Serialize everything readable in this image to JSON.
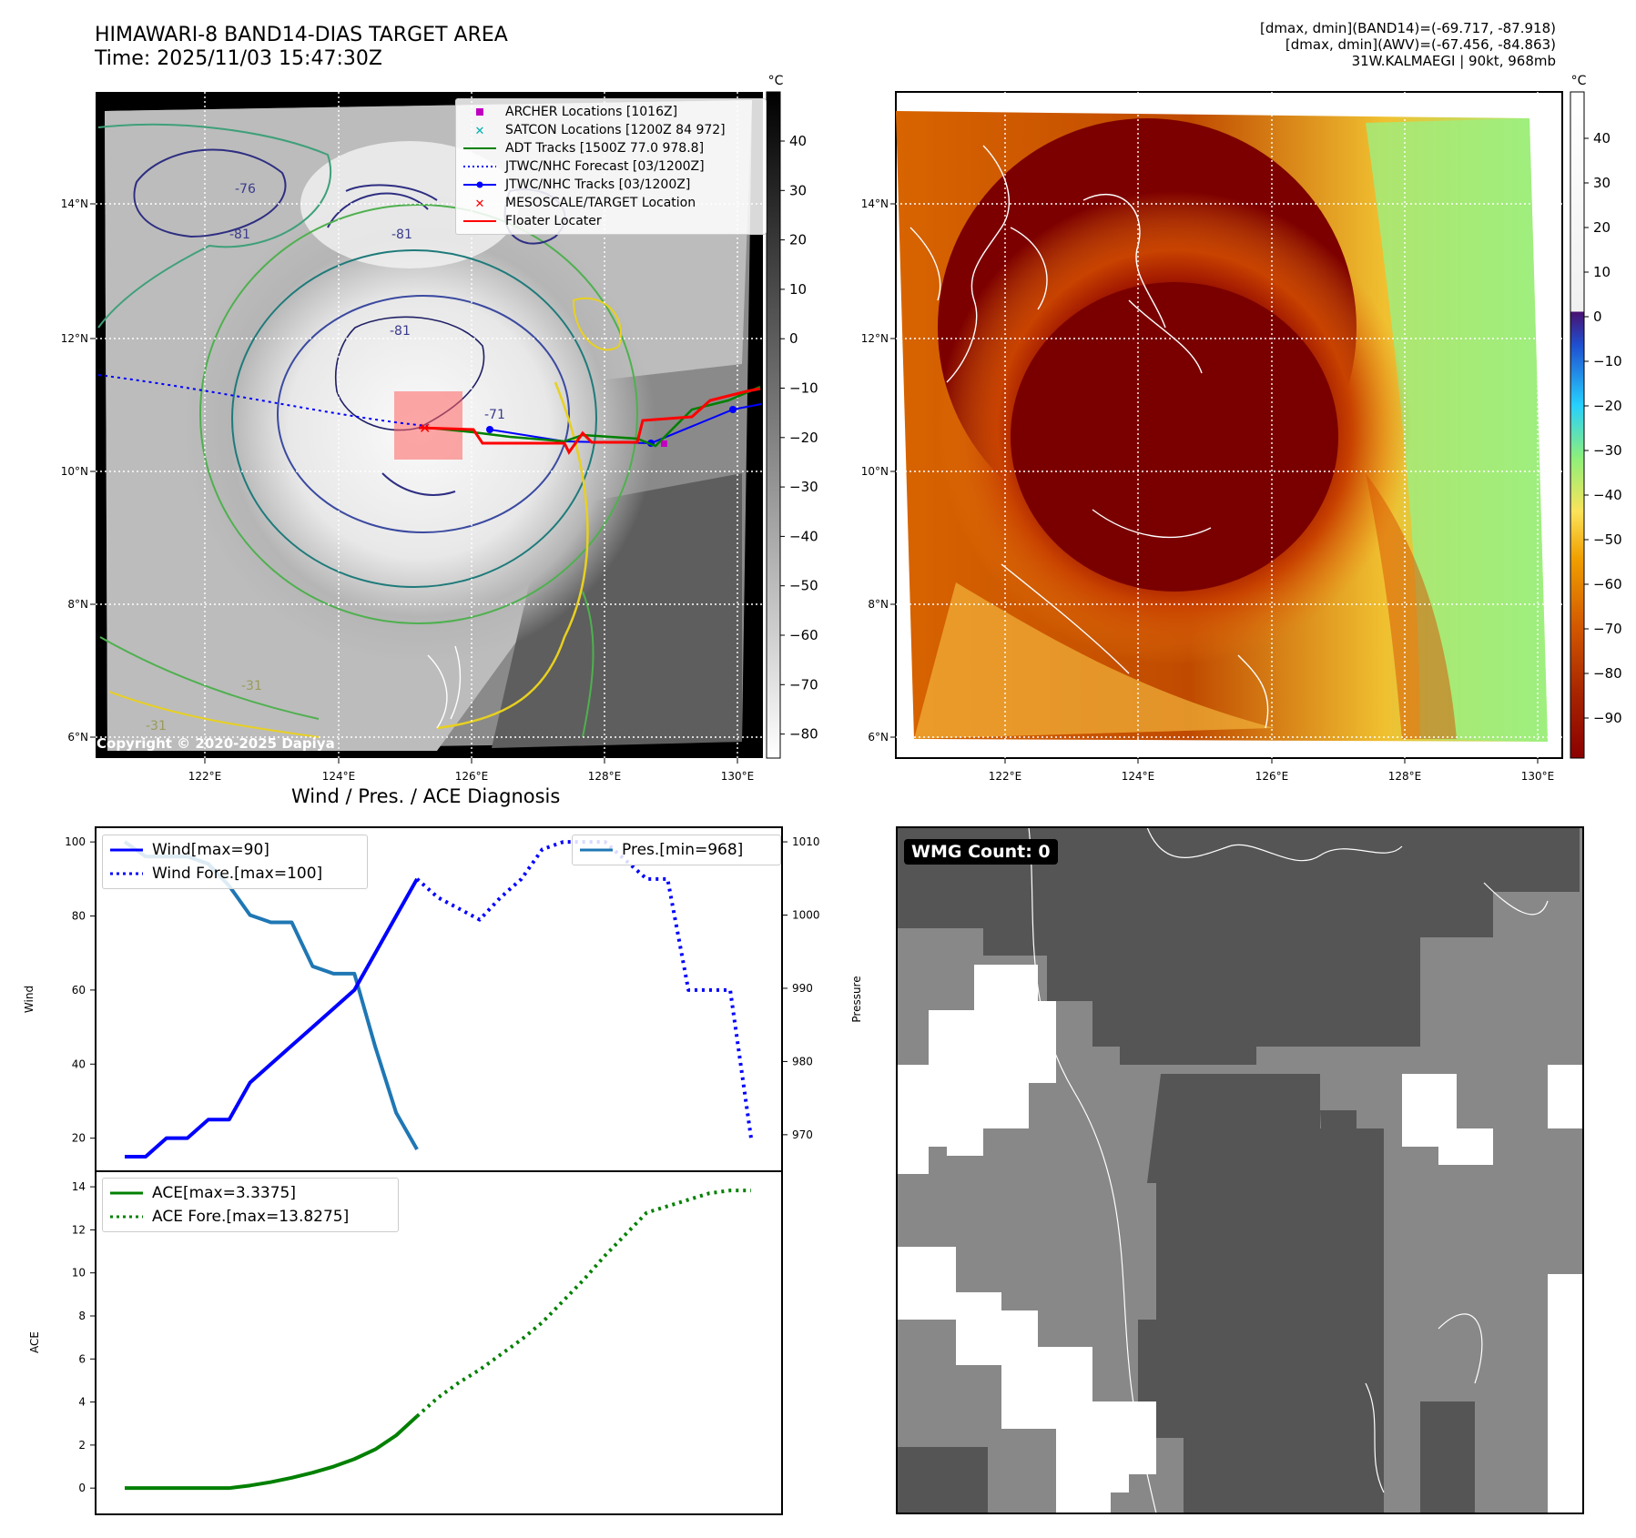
{
  "header": {
    "title_line1": "HIMAWARI-8 BAND14-DIAS TARGET AREA",
    "title_line2": "Time: 2025/11/03 15:47:30Z",
    "stats_line1": "[dmax, dmin](BAND14)=(-69.717, -87.918)",
    "stats_line2": "[dmax, dmin](AWV)=(-67.456, -84.863)",
    "stats_line3": "31W.KALMAEGI | 90kt, 968mb"
  },
  "map_panels": {
    "lon_ticks": [
      "122°E",
      "124°E",
      "126°E",
      "128°E",
      "130°E"
    ],
    "lat_ticks": [
      "14°N",
      "12°N",
      "10°N",
      "8°N",
      "6°N"
    ],
    "copyright": "Copyright © 2020-2025 Dapiya",
    "contour_labels": [
      "-76",
      "-81",
      "-81",
      "-81",
      "-71",
      "-31",
      "-31"
    ],
    "colorbar_left": {
      "unit": "°C",
      "ticks": [
        "40",
        "30",
        "20",
        "10",
        "0",
        "−10",
        "−20",
        "−30",
        "−40",
        "−50",
        "−60",
        "−70",
        "−80"
      ]
    },
    "colorbar_right": {
      "unit": "°C",
      "ticks": [
        "40",
        "30",
        "20",
        "10",
        "0",
        "−10",
        "−20",
        "−30",
        "−40",
        "−50",
        "−60",
        "−70",
        "−80",
        "−90"
      ]
    },
    "legend_items": [
      {
        "label": "ARCHER Locations [1016Z]",
        "color": "#c000c0",
        "marker": "square"
      },
      {
        "label": "SATCON Locations [1200Z 84 972]",
        "color": "#00b0b0",
        "marker": "x"
      },
      {
        "label": "ADT Tracks [1500Z 77.0 978.8]",
        "color": "#008000",
        "marker": "line"
      },
      {
        "label": "JTWC/NHC Forecast [03/1200Z]",
        "color": "#0000ff",
        "marker": "dotted"
      },
      {
        "label": "JTWC/NHC Tracks [03/1200Z]",
        "color": "#0000ff",
        "marker": "line-dot"
      },
      {
        "label": "MESOSCALE/TARGET Location",
        "color": "#ff0000",
        "marker": "x"
      },
      {
        "label": "Floater Locater",
        "color": "#ff0000",
        "marker": "line"
      }
    ]
  },
  "diagnosis": {
    "title": "Wind / Pres. / ACE Diagnosis",
    "wind_ylabel": "Wind",
    "pres_ylabel": "Pressure",
    "ace_ylabel": "ACE",
    "wind_ticks": [
      "100",
      "80",
      "60",
      "40",
      "20"
    ],
    "pres_ticks": [
      "1010",
      "1000",
      "990",
      "980",
      "970"
    ],
    "ace_ticks": [
      "14",
      "12",
      "10",
      "8",
      "6",
      "4",
      "2",
      "0"
    ],
    "legend_wind": "Wind[max=90]",
    "legend_wind_fore": "Wind Fore.[max=100]",
    "legend_pres": "Pres.[min=968]",
    "legend_ace": "ACE[max=3.3375]",
    "legend_ace_fore": "ACE Fore.[max=13.8275]"
  },
  "wmg": {
    "label": "WMG Count: 0"
  },
  "colors": {
    "wind": "#0000ff",
    "pressure": "#1f77b4",
    "ace": "#008000",
    "track_red": "#ff0000",
    "track_blue": "#0000ff",
    "track_green": "#008000"
  },
  "chart_data": [
    {
      "type": "line",
      "title": "Wind / Pres. / ACE Diagnosis",
      "ylabel": "Wind",
      "ylim": [
        15,
        102
      ],
      "series": [
        {
          "name": "Wind[max=90]",
          "x": [
            0,
            1,
            2,
            3,
            4,
            5,
            6,
            7,
            8,
            9,
            10,
            11,
            12,
            13,
            14
          ],
          "values": [
            15,
            15,
            20,
            20,
            25,
            25,
            35,
            40,
            45,
            50,
            55,
            60,
            70,
            80,
            90
          ]
        },
        {
          "name": "Wind Fore.[max=100]",
          "x": [
            14,
            15,
            16,
            17,
            18,
            19,
            20,
            21,
            22,
            23,
            24,
            25,
            26,
            27,
            28,
            29,
            30
          ],
          "values": [
            90,
            85,
            82,
            79,
            85,
            90,
            98,
            100,
            100,
            100,
            95,
            90,
            90,
            60,
            60,
            60,
            20
          ]
        }
      ]
    },
    {
      "type": "line",
      "ylabel": "Pressure",
      "ylim": [
        967,
        1011
      ],
      "series": [
        {
          "name": "Pres.[min=968]",
          "x": [
            0,
            1,
            2,
            3,
            4,
            5,
            6,
            7,
            8,
            9,
            10,
            11,
            12,
            13,
            14
          ],
          "values": [
            1010,
            1008,
            1008,
            1008,
            1007,
            1004,
            1000,
            999,
            999,
            993,
            992,
            992,
            982,
            973,
            968
          ]
        }
      ]
    },
    {
      "type": "line",
      "ylabel": "ACE",
      "ylim": [
        -0.5,
        14.3
      ],
      "series": [
        {
          "name": "ACE[max=3.3375]",
          "x": [
            0,
            1,
            2,
            3,
            4,
            5,
            6,
            7,
            8,
            9,
            10,
            11,
            12,
            13,
            14
          ],
          "values": [
            0,
            0,
            0,
            0,
            0,
            0,
            0.12,
            0.28,
            0.48,
            0.72,
            1.0,
            1.35,
            1.8,
            2.45,
            3.34
          ]
        },
        {
          "name": "ACE Fore.[max=13.8275]",
          "x": [
            14,
            15,
            16,
            17,
            18,
            19,
            20,
            21,
            22,
            23,
            24,
            25,
            26,
            27,
            28,
            29,
            30
          ],
          "values": [
            3.34,
            4.2,
            4.9,
            5.5,
            6.2,
            6.9,
            7.7,
            8.7,
            9.7,
            10.8,
            11.8,
            12.8,
            13.1,
            13.4,
            13.7,
            13.83,
            13.83
          ]
        }
      ]
    }
  ]
}
